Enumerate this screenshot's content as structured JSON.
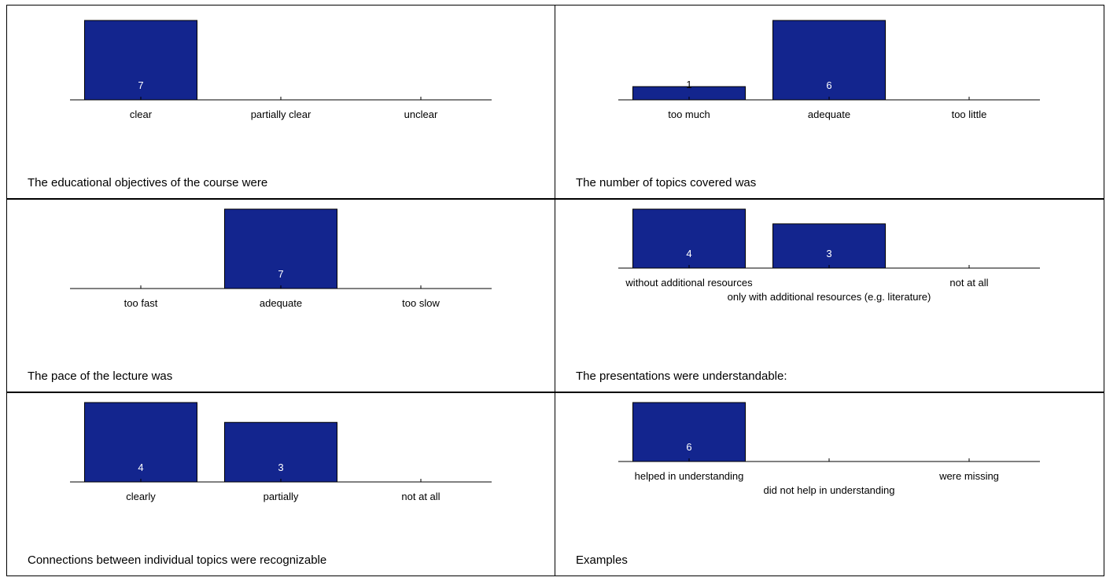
{
  "chart_data": [
    {
      "type": "bar",
      "title": "The educational objectives of the course were",
      "categories": [
        "clear",
        "partially clear",
        "unclear"
      ],
      "values": [
        7,
        0,
        0
      ],
      "value_labels": [
        "7",
        "",
        ""
      ],
      "ylim": [
        0,
        7
      ],
      "bar_color": "#13258e"
    },
    {
      "type": "bar",
      "title": "The number of topics covered was",
      "categories": [
        "too much",
        "adequate",
        "too little"
      ],
      "values": [
        1,
        6,
        0
      ],
      "value_labels": [
        "1",
        "6",
        ""
      ],
      "ylim": [
        0,
        6
      ],
      "bar_color": "#13258e"
    },
    {
      "type": "bar",
      "title": "The pace of the lecture was",
      "categories": [
        "too fast",
        "adequate",
        "too slow"
      ],
      "values": [
        0,
        7,
        0
      ],
      "value_labels": [
        "",
        "7",
        ""
      ],
      "ylim": [
        0,
        7
      ],
      "bar_color": "#13258e"
    },
    {
      "type": "bar",
      "title": "The presentations were understandable:",
      "categories": [
        "without additional resources",
        "only with additional resources (e.g. literature)",
        "not at all"
      ],
      "values": [
        4,
        3,
        0
      ],
      "value_labels": [
        "4",
        "3",
        ""
      ],
      "ylim": [
        0,
        4
      ],
      "bar_color": "#13258e"
    },
    {
      "type": "bar",
      "title": "Connections between individual topics were recognizable",
      "categories": [
        "clearly",
        "partially",
        "not at all"
      ],
      "values": [
        4,
        3,
        0
      ],
      "value_labels": [
        "4",
        "3",
        ""
      ],
      "ylim": [
        0,
        4
      ],
      "bar_color": "#13258e"
    },
    {
      "type": "bar",
      "title": "Examples",
      "categories": [
        "helped in understanding",
        "did not help in understanding",
        "were missing"
      ],
      "values": [
        6,
        0,
        0
      ],
      "value_labels": [
        "6",
        "",
        ""
      ],
      "ylim": [
        0,
        6
      ],
      "bar_color": "#13258e"
    }
  ]
}
